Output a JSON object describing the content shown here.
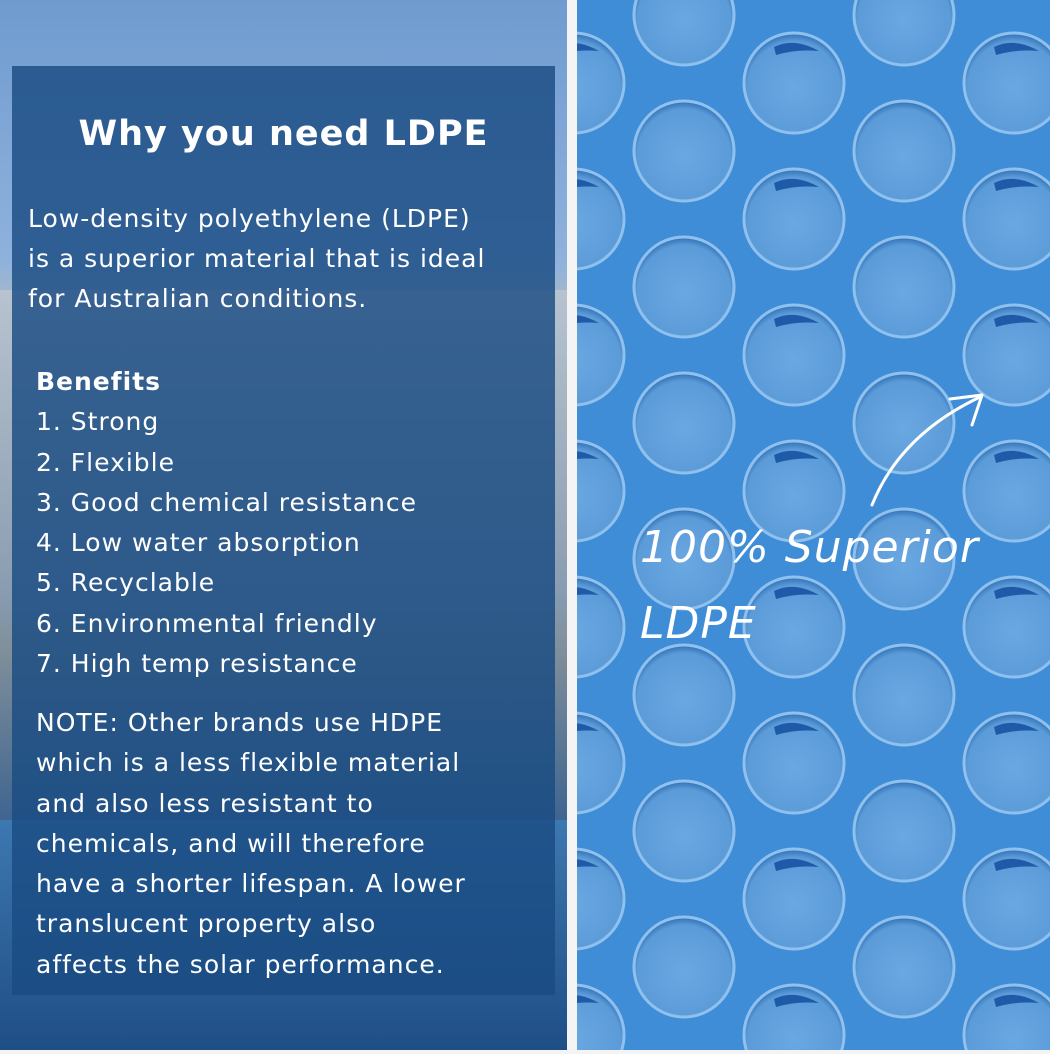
{
  "panel": {
    "title": "Why you need LDPE",
    "intro": [
      "Low-density polyethylene (LDPE)",
      "is a superior material that is ideal",
      "for Australian conditions."
    ],
    "benefits_heading": "Benefits",
    "benefits": [
      "1. Strong",
      "2. Flexible",
      "3. Good chemical resistance",
      "4. Low water absorption",
      "5. Recyclable",
      "6. Environmental friendly",
      "7. High temp resistance"
    ],
    "note": [
      "NOTE: Other brands use HDPE",
      "which is a less flexible material",
      "and also less resistant to",
      "chemicals, and will therefore",
      "have a shorter lifespan. A lower",
      "translucent property also",
      "affects the solar performance."
    ]
  },
  "callout": {
    "line1": "100% Superior",
    "line2": "LDPE",
    "icon": "arrow-up-right-icon"
  },
  "colors": {
    "panel": "#1a4c82",
    "bubble_sheet": "#3f8dd6"
  }
}
